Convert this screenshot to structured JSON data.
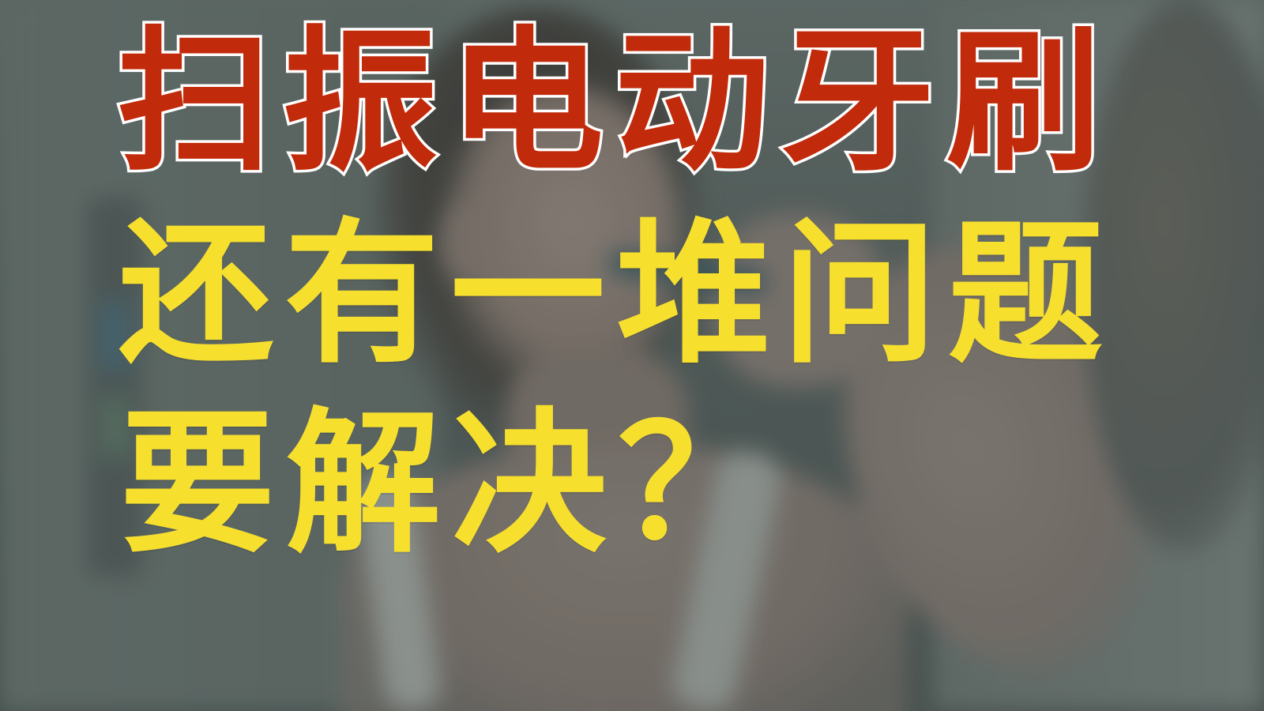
{
  "headline": {
    "line1": "扫振电动牙刷",
    "line2": "还有一堆问题",
    "line3": "要解决？"
  },
  "colors": {
    "line1_fill": "#c12a0a",
    "line1_outline": "#ffffff",
    "line2_fill": "#f7df2e",
    "line3_fill": "#f7df2e",
    "overlay": "#5f6b68"
  }
}
